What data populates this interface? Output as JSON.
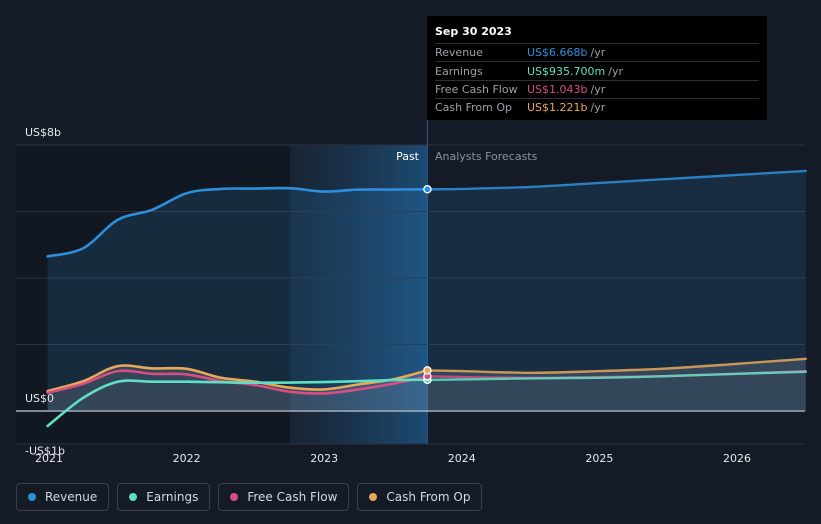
{
  "chart_data": {
    "type": "area",
    "x_unit": "year",
    "xlim": [
      2020.9,
      2026.5
    ],
    "ylim": [
      -1.05,
      8.0
    ],
    "y_ticks": [
      {
        "value": 8,
        "label": "US$8b"
      },
      {
        "value": 0,
        "label": "US$0"
      },
      {
        "value": -1,
        "label": "-US$1b"
      }
    ],
    "x_ticks": [
      {
        "value": 2021,
        "label": "2021"
      },
      {
        "value": 2022,
        "label": "2022"
      },
      {
        "value": 2023,
        "label": "2023"
      },
      {
        "value": 2024,
        "label": "2024"
      },
      {
        "value": 2025,
        "label": "2025"
      },
      {
        "value": 2026,
        "label": "2026"
      }
    ],
    "divider_x": 2023.75,
    "shade_start_x": 2022.75,
    "past_label": "Past",
    "forecast_label": "Analysts Forecasts",
    "series": [
      {
        "name": "Revenue",
        "color": "#2d8fdc",
        "fill": true,
        "points": [
          [
            2020.99,
            4.65
          ],
          [
            2021.25,
            4.9
          ],
          [
            2021.5,
            5.75
          ],
          [
            2021.75,
            6.05
          ],
          [
            2022.0,
            6.55
          ],
          [
            2022.25,
            6.68
          ],
          [
            2022.5,
            6.69
          ],
          [
            2022.75,
            6.7
          ],
          [
            2023.0,
            6.6
          ],
          [
            2023.25,
            6.66
          ],
          [
            2023.5,
            6.66
          ],
          [
            2023.75,
            6.668
          ]
        ],
        "forecast": [
          [
            2023.75,
            6.668
          ],
          [
            2024.0,
            6.68
          ],
          [
            2024.5,
            6.74
          ],
          [
            2025.0,
            6.86
          ],
          [
            2025.5,
            6.98
          ],
          [
            2026.0,
            7.1
          ],
          [
            2026.5,
            7.22
          ]
        ]
      },
      {
        "name": "Earnings",
        "color": "#5ee0c4",
        "fill": false,
        "points": [
          [
            2020.99,
            -0.45
          ],
          [
            2021.25,
            0.4
          ],
          [
            2021.5,
            0.88
          ],
          [
            2021.75,
            0.88
          ],
          [
            2022.0,
            0.88
          ],
          [
            2022.5,
            0.85
          ],
          [
            2023.0,
            0.87
          ],
          [
            2023.5,
            0.93
          ],
          [
            2023.75,
            0.9357
          ]
        ],
        "forecast": [
          [
            2023.75,
            0.9357
          ],
          [
            2024.0,
            0.95
          ],
          [
            2024.5,
            0.98
          ],
          [
            2025.0,
            1.0
          ],
          [
            2025.5,
            1.05
          ],
          [
            2026.0,
            1.12
          ],
          [
            2026.5,
            1.18
          ]
        ]
      },
      {
        "name": "Free Cash Flow",
        "color": "#d64e86",
        "fill": false,
        "points": [
          [
            2020.99,
            0.55
          ],
          [
            2021.25,
            0.82
          ],
          [
            2021.5,
            1.2
          ],
          [
            2021.75,
            1.12
          ],
          [
            2022.0,
            1.1
          ],
          [
            2022.25,
            0.9
          ],
          [
            2022.5,
            0.78
          ],
          [
            2022.75,
            0.58
          ],
          [
            2023.0,
            0.53
          ],
          [
            2023.25,
            0.65
          ],
          [
            2023.5,
            0.82
          ],
          [
            2023.75,
            1.043
          ]
        ],
        "forecast": [
          [
            2023.75,
            1.043
          ],
          [
            2024.0,
            1.02
          ],
          [
            2024.5,
            1.0
          ],
          [
            2025.0,
            1.02
          ],
          [
            2025.5,
            1.05
          ],
          [
            2026.0,
            1.12
          ],
          [
            2026.5,
            1.2
          ]
        ]
      },
      {
        "name": "Cash From Op",
        "color": "#e8a85a",
        "fill": false,
        "points": [
          [
            2020.99,
            0.6
          ],
          [
            2021.25,
            0.9
          ],
          [
            2021.5,
            1.35
          ],
          [
            2021.75,
            1.28
          ],
          [
            2022.0,
            1.27
          ],
          [
            2022.25,
            1.0
          ],
          [
            2022.5,
            0.88
          ],
          [
            2022.75,
            0.7
          ],
          [
            2023.0,
            0.65
          ],
          [
            2023.25,
            0.8
          ],
          [
            2023.5,
            0.95
          ],
          [
            2023.75,
            1.221
          ]
        ],
        "forecast": [
          [
            2023.75,
            1.221
          ],
          [
            2024.0,
            1.2
          ],
          [
            2024.5,
            1.15
          ],
          [
            2025.0,
            1.2
          ],
          [
            2025.5,
            1.28
          ],
          [
            2026.0,
            1.42
          ],
          [
            2026.5,
            1.57
          ]
        ]
      }
    ]
  },
  "tooltip": {
    "date": "Sep 30 2023",
    "rows": [
      {
        "label": "Revenue",
        "value": "US$6.668b",
        "unit": "/yr",
        "color": "#2d8fdc"
      },
      {
        "label": "Earnings",
        "value": "US$935.700m",
        "unit": "/yr",
        "color": "#5ee0c4"
      },
      {
        "label": "Free Cash Flow",
        "value": "US$1.043b",
        "unit": "/yr",
        "color": "#d64e86"
      },
      {
        "label": "Cash From Op",
        "value": "US$1.221b",
        "unit": "/yr",
        "color": "#e8a85a"
      }
    ]
  },
  "legend": [
    {
      "label": "Revenue",
      "color": "#2d8fdc"
    },
    {
      "label": "Earnings",
      "color": "#5ee0c4"
    },
    {
      "label": "Free Cash Flow",
      "color": "#d64e86"
    },
    {
      "label": "Cash From Op",
      "color": "#e8a85a"
    }
  ]
}
